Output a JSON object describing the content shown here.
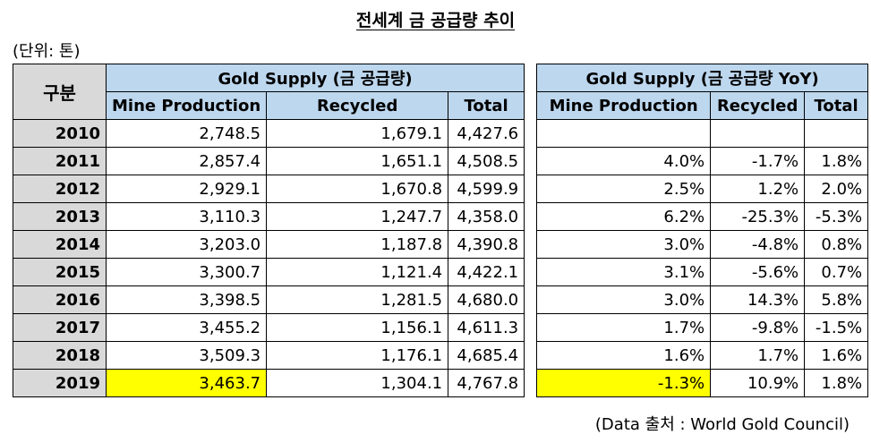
{
  "title": "전세계 금 공급량 추이",
  "unit": "(단위: 톤)",
  "source": "(Data 출처 : World Gold Council)",
  "header": {
    "rowhead": "구분",
    "group1": "Gold Supply (금 공급량)",
    "group2": "Gold Supply (금 공급량 YoY)",
    "cols1": [
      "Mine Production",
      "Recycled",
      "Total"
    ],
    "cols2": [
      "Mine Production",
      "Recycled",
      "Total"
    ]
  },
  "rows": [
    {
      "year": "2010",
      "mine": "2,748.5",
      "recycled": "1,679.1",
      "total": "4,427.6",
      "yoy_mine": "",
      "yoy_recycled": "",
      "yoy_total": ""
    },
    {
      "year": "2011",
      "mine": "2,857.4",
      "recycled": "1,651.1",
      "total": "4,508.5",
      "yoy_mine": "4.0%",
      "yoy_recycled": "-1.7%",
      "yoy_total": "1.8%"
    },
    {
      "year": "2012",
      "mine": "2,929.1",
      "recycled": "1,670.8",
      "total": "4,599.9",
      "yoy_mine": "2.5%",
      "yoy_recycled": "1.2%",
      "yoy_total": "2.0%"
    },
    {
      "year": "2013",
      "mine": "3,110.3",
      "recycled": "1,247.7",
      "total": "4,358.0",
      "yoy_mine": "6.2%",
      "yoy_recycled": "-25.3%",
      "yoy_total": "-5.3%"
    },
    {
      "year": "2014",
      "mine": "3,203.0",
      "recycled": "1,187.8",
      "total": "4,390.8",
      "yoy_mine": "3.0%",
      "yoy_recycled": "-4.8%",
      "yoy_total": "0.8%"
    },
    {
      "year": "2015",
      "mine": "3,300.7",
      "recycled": "1,121.4",
      "total": "4,422.1",
      "yoy_mine": "3.1%",
      "yoy_recycled": "-5.6%",
      "yoy_total": "0.7%"
    },
    {
      "year": "2016",
      "mine": "3,398.5",
      "recycled": "1,281.5",
      "total": "4,680.0",
      "yoy_mine": "3.0%",
      "yoy_recycled": "14.3%",
      "yoy_total": "5.8%"
    },
    {
      "year": "2017",
      "mine": "3,455.2",
      "recycled": "1,156.1",
      "total": "4,611.3",
      "yoy_mine": "1.7%",
      "yoy_recycled": "-9.8%",
      "yoy_total": "-1.5%"
    },
    {
      "year": "2018",
      "mine": "3,509.3",
      "recycled": "1,176.1",
      "total": "4,685.4",
      "yoy_mine": "1.6%",
      "yoy_recycled": "1.7%",
      "yoy_total": "1.6%"
    },
    {
      "year": "2019",
      "mine": "3,463.7",
      "recycled": "1,304.1",
      "total": "4,767.8",
      "yoy_mine": "-1.3%",
      "yoy_recycled": "10.9%",
      "yoy_total": "1.8%"
    }
  ],
  "highlight_year": "2019",
  "highlight_color": "#ffff00",
  "header_color": "#bdd7ee",
  "rowhead_color": "#d9d9d9"
}
